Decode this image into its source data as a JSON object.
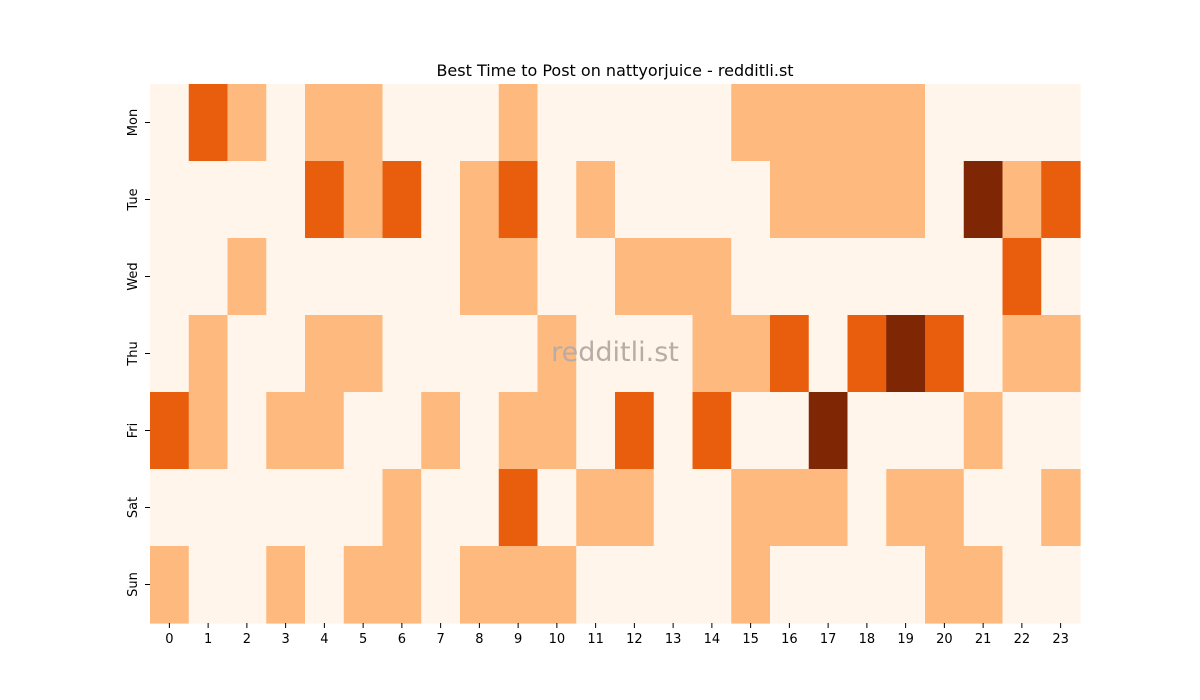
{
  "chart_data": {
    "type": "heatmap",
    "title": "Best Time to Post on nattyorjuice - redditli.st",
    "xlabel": "",
    "ylabel": "",
    "x_categories": [
      "0",
      "1",
      "2",
      "3",
      "4",
      "5",
      "6",
      "7",
      "8",
      "9",
      "10",
      "11",
      "12",
      "13",
      "14",
      "15",
      "16",
      "17",
      "18",
      "19",
      "20",
      "21",
      "22",
      "23"
    ],
    "y_categories": [
      "Mon",
      "Tue",
      "Wed",
      "Thu",
      "Fri",
      "Sat",
      "Sun"
    ],
    "values": [
      [
        0,
        2,
        1,
        0,
        1,
        1,
        0,
        0,
        0,
        1,
        0,
        0,
        0,
        0,
        0,
        1,
        1,
        1,
        1,
        1,
        0,
        0,
        0,
        0
      ],
      [
        0,
        0,
        0,
        0,
        2,
        1,
        2,
        0,
        1,
        2,
        0,
        1,
        0,
        0,
        0,
        0,
        1,
        1,
        1,
        1,
        0,
        3,
        1,
        2
      ],
      [
        0,
        0,
        1,
        0,
        0,
        0,
        0,
        0,
        1,
        1,
        0,
        0,
        1,
        1,
        1,
        0,
        0,
        0,
        0,
        0,
        0,
        0,
        2,
        0
      ],
      [
        0,
        1,
        0,
        0,
        1,
        1,
        0,
        0,
        0,
        0,
        1,
        0,
        0,
        0,
        1,
        1,
        2,
        0,
        2,
        3,
        2,
        0,
        1,
        1
      ],
      [
        2,
        1,
        0,
        1,
        1,
        0,
        0,
        1,
        0,
        1,
        1,
        0,
        2,
        0,
        2,
        0,
        0,
        3,
        0,
        0,
        0,
        1,
        0,
        0
      ],
      [
        0,
        0,
        0,
        0,
        0,
        0,
        1,
        0,
        0,
        2,
        0,
        1,
        1,
        0,
        0,
        1,
        1,
        1,
        0,
        1,
        1,
        0,
        0,
        1
      ],
      [
        1,
        0,
        0,
        1,
        0,
        1,
        1,
        0,
        1,
        1,
        1,
        0,
        0,
        0,
        0,
        1,
        0,
        0,
        0,
        0,
        1,
        1,
        0,
        0
      ]
    ],
    "value_range": [
      0,
      3
    ],
    "colormap": [
      "#fff5eb",
      "#fdb97e",
      "#e95e0d",
      "#7f2704"
    ],
    "colorbar": false,
    "grid": false,
    "watermark": "redditli.st"
  }
}
